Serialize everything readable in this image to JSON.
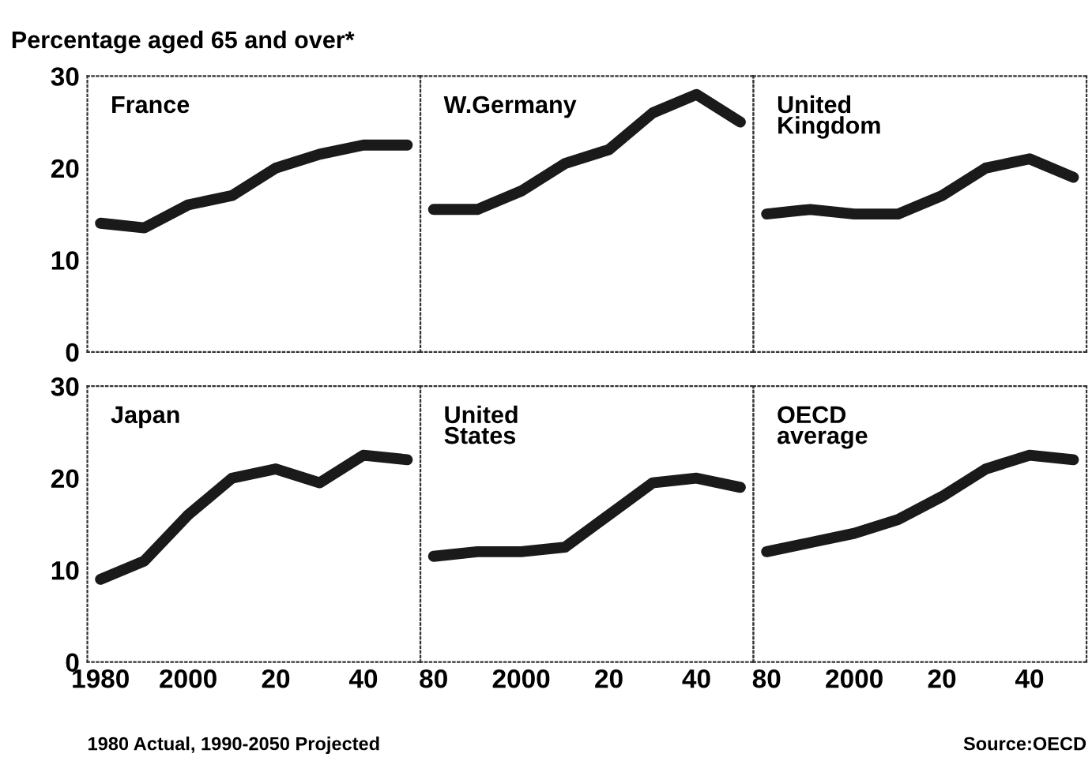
{
  "chart_data": [
    {
      "type": "line",
      "title": "France",
      "ylabel": "Percentage aged 65 and over*",
      "x": [
        1980,
        1990,
        2000,
        2010,
        2020,
        2030,
        2040,
        2050
      ],
      "series": [
        {
          "color": "#1a1a1a",
          "values": [
            14,
            13.5,
            16,
            17,
            20,
            21.5,
            22.5,
            22.5
          ]
        }
      ],
      "xlim": [
        1977,
        2053
      ],
      "ylim": [
        0,
        30
      ],
      "yticks": [
        0,
        10,
        20,
        30
      ],
      "tick_labels": "y",
      "grid": false,
      "legend": false
    },
    {
      "type": "line",
      "title": "W.Germany",
      "x": [
        1980,
        1990,
        2000,
        2010,
        2020,
        2030,
        2040,
        2050
      ],
      "series": [
        {
          "color": "#1a1a1a",
          "values": [
            15.5,
            15.5,
            17.5,
            20.5,
            22,
            26,
            28,
            25
          ]
        }
      ],
      "xlim": [
        1977,
        2053
      ],
      "ylim": [
        0,
        30
      ],
      "yticks": [
        0,
        10,
        20,
        30
      ],
      "tick_labels": false,
      "grid": false,
      "legend": false
    },
    {
      "type": "line",
      "title": "United\nKingdom",
      "x": [
        1980,
        1990,
        2000,
        2010,
        2020,
        2030,
        2040,
        2050
      ],
      "series": [
        {
          "color": "#1a1a1a",
          "values": [
            15,
            15.5,
            15,
            15,
            17,
            20,
            21,
            19
          ]
        }
      ],
      "xlim": [
        1977,
        2053
      ],
      "ylim": [
        0,
        30
      ],
      "yticks": [
        0,
        10,
        20,
        30
      ],
      "tick_labels": false,
      "grid": false,
      "legend": false
    },
    {
      "type": "line",
      "title": "Japan",
      "x": [
        1980,
        1990,
        2000,
        2010,
        2020,
        2030,
        2040,
        2050
      ],
      "series": [
        {
          "color": "#1a1a1a",
          "values": [
            9,
            11,
            16,
            20,
            21,
            19.5,
            22.5,
            22
          ]
        }
      ],
      "xlim": [
        1977,
        2053
      ],
      "ylim": [
        0,
        30
      ],
      "xticks": [
        {
          "value": 1980,
          "label": "1980"
        },
        2000,
        {
          "value": 2020,
          "label": "20"
        },
        {
          "value": 2040,
          "label": "40"
        }
      ],
      "yticks": [
        0,
        10,
        20,
        30
      ],
      "grid": false,
      "legend": false,
      "annotations": [
        "1980 Actual, 1990-2050 Projected"
      ]
    },
    {
      "type": "line",
      "title": "United\nStates",
      "x": [
        1980,
        1990,
        2000,
        2010,
        2020,
        2030,
        2040,
        2050
      ],
      "series": [
        {
          "color": "#1a1a1a",
          "values": [
            11.5,
            12,
            12,
            12.5,
            16,
            19.5,
            20,
            19
          ]
        }
      ],
      "xlim": [
        1977,
        2053
      ],
      "ylim": [
        0,
        30
      ],
      "xticks": [
        {
          "value": 1980,
          "label": "80"
        },
        2000,
        {
          "value": 2020,
          "label": "20"
        },
        {
          "value": 2040,
          "label": "40"
        }
      ],
      "yticks": [
        0,
        10,
        20,
        30
      ],
      "tick_labels": "x",
      "grid": false,
      "legend": false
    },
    {
      "type": "line",
      "title": "OECD\naverage",
      "x": [
        1980,
        1990,
        2000,
        2010,
        2020,
        2030,
        2040,
        2050
      ],
      "series": [
        {
          "color": "#1a1a1a",
          "values": [
            12,
            13,
            14,
            15.5,
            18,
            21,
            22.5,
            22
          ]
        }
      ],
      "xlim": [
        1977,
        2053
      ],
      "ylim": [
        0,
        30
      ],
      "xticks": [
        {
          "value": 1980,
          "label": "80"
        },
        2000,
        {
          "value": 2020,
          "label": "20"
        },
        {
          "value": 2040,
          "label": "40"
        }
      ],
      "yticks": [
        0,
        10,
        20,
        30
      ],
      "tick_labels": "x",
      "grid": false,
      "legend": false,
      "annotations": [
        "Source:OECD"
      ]
    }
  ]
}
